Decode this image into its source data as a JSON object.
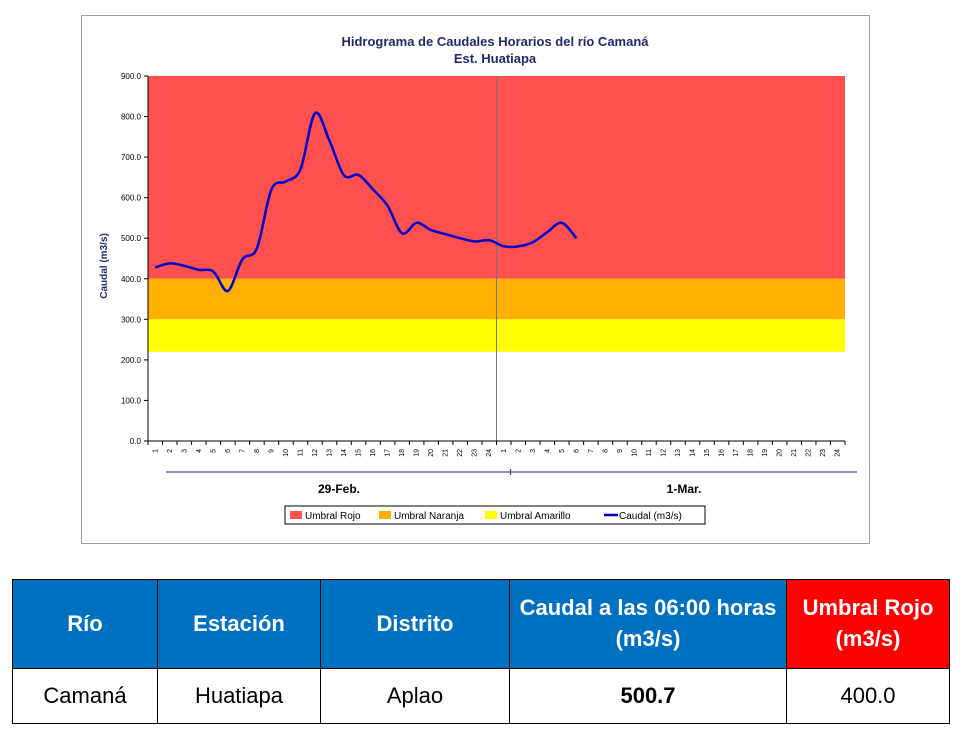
{
  "chart_data": {
    "type": "line",
    "title": "Hidrograma de Caudales Horarios del río Camaná",
    "subtitle": "Est. Huatiapa",
    "ylabel": "Caudal (m3/s)",
    "ylim": [
      0,
      900
    ],
    "yticks": [
      "0.0",
      "100.0",
      "200.0",
      "300.0",
      "400.0",
      "500.0",
      "600.0",
      "700.0",
      "800.0",
      "900.0"
    ],
    "x_hours": [
      "1",
      "2",
      "3",
      "4",
      "5",
      "6",
      "7",
      "8",
      "9",
      "10",
      "11",
      "12",
      "13",
      "14",
      "15",
      "16",
      "17",
      "18",
      "19",
      "20",
      "21",
      "22",
      "23",
      "24"
    ],
    "days": [
      "29-Feb.",
      "1-Mar."
    ],
    "thresholds": [
      {
        "name": "Umbral Rojo",
        "from": 400,
        "to": 900,
        "color": "#ff5050"
      },
      {
        "name": "Umbral Naranja",
        "from": 300,
        "to": 400,
        "color": "#ffb000"
      },
      {
        "name": "Umbral Amarillo",
        "from": 220,
        "to": 300,
        "color": "#ffff00"
      }
    ],
    "series": [
      {
        "name": "Caudal (m3/s)",
        "color": "#0000cc",
        "x": [
          1,
          2,
          3,
          4,
          5,
          6,
          7,
          8,
          9,
          10,
          11,
          12,
          13,
          14,
          15,
          16,
          17,
          18,
          19,
          20,
          21,
          22,
          23,
          24,
          25,
          26,
          27,
          28,
          29,
          30
        ],
        "values": [
          428,
          438,
          432,
          422,
          418,
          370,
          448,
          475,
          620,
          640,
          670,
          808,
          740,
          655,
          656,
          620,
          580,
          512,
          538,
          520,
          510,
          500,
          492,
          495,
          480,
          480,
          490,
          515,
          538,
          500
        ]
      }
    ],
    "legend": [
      "Umbral Rojo",
      "Umbral Naranja",
      "Umbral Amarillo",
      "Caudal (m3/s)"
    ],
    "legend_position": "bottom"
  },
  "table": {
    "headers": [
      "Río",
      "Estación",
      "Distrito",
      "Caudal a las 06:00 horas (m3/s)",
      "Umbral Rojo (m3/s)"
    ],
    "row": [
      "Camaná",
      "Huatiapa",
      "Aplao",
      "500.7",
      "400.0"
    ]
  }
}
